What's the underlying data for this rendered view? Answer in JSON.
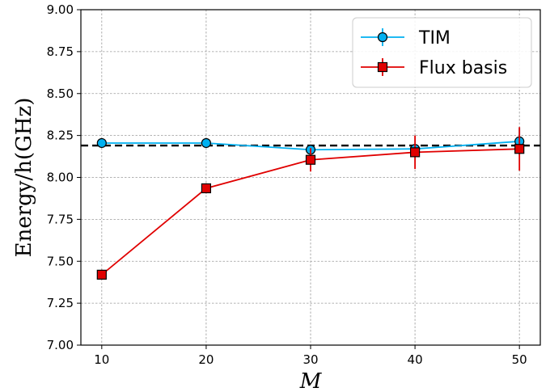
{
  "chart_data": {
    "type": "line",
    "x": [
      10,
      20,
      30,
      40,
      50
    ],
    "xticks": [
      10,
      20,
      30,
      40,
      50
    ],
    "yticks": [
      "7.00",
      "7.25",
      "7.50",
      "7.75",
      "8.00",
      "8.25",
      "8.50",
      "8.75",
      "9.00"
    ],
    "xlim": [
      8,
      52
    ],
    "ylim": [
      7.0,
      9.0
    ],
    "xlabel": "M",
    "ylabel": "Energy/h(GHz)",
    "grid": true,
    "legend_position": "top-right",
    "reference_line": {
      "y": 8.19,
      "style": "dashed",
      "color": "#000000"
    },
    "series": [
      {
        "name": "TIM",
        "marker": "circle",
        "color": "#00b0f0",
        "marker_fill": "#00b0f0",
        "values": [
          8.205,
          8.205,
          8.165,
          8.17,
          8.215
        ],
        "errors": [
          0.01,
          0.01,
          0.01,
          0.03,
          0.08
        ]
      },
      {
        "name": "Flux basis",
        "marker": "square",
        "color": "#e00000",
        "marker_fill": "#e00000",
        "values": [
          7.42,
          7.935,
          8.105,
          8.15,
          8.17
        ],
        "errors": [
          0.03,
          0.03,
          0.07,
          0.1,
          0.13
        ]
      }
    ]
  }
}
